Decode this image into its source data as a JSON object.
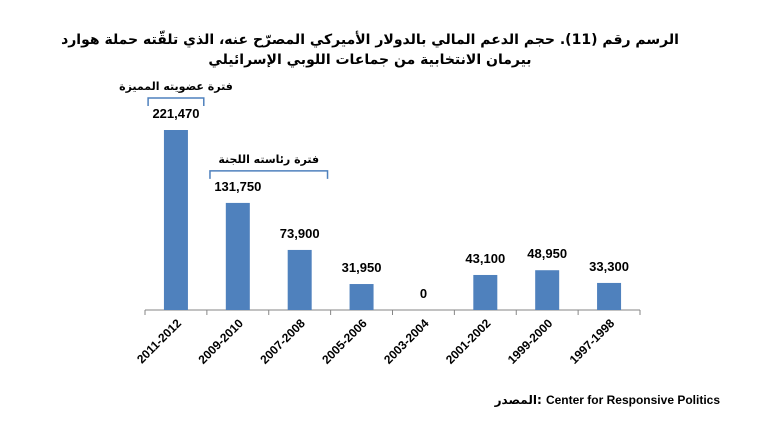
{
  "title": "الرسم رقم (11). حجم الدعم المالي بالدولار الأميركي المصرّح عنه، الذي تلقّته حملة هوارد بيرمان الانتخابية من جماعات اللوبي الإسرائيلي",
  "chart_data": {
    "type": "bar",
    "categories": [
      "2011-2012",
      "2009-2010",
      "2007-2008",
      "2005-2006",
      "2003-2004",
      "2001-2002",
      "1999-2000",
      "1997-1998"
    ],
    "values": [
      221470,
      131750,
      73900,
      31950,
      0,
      43100,
      48950,
      33300
    ],
    "value_labels": [
      "221,470",
      "131,750",
      "73,900",
      "31,950",
      "0",
      "43,100",
      "48,950",
      "33,300"
    ],
    "ylim": [
      0,
      221470
    ],
    "bar_color": "#4F81BD",
    "annotations": [
      {
        "text": "فترة عضويته المميزة",
        "from": 0,
        "to": 0
      },
      {
        "text": "فترة رئاسته اللجنة",
        "from": 1,
        "to": 2
      }
    ],
    "grid": false,
    "legend": "none"
  },
  "source": {
    "label": "المصدر:",
    "value": "Center for Responsive Politics"
  }
}
